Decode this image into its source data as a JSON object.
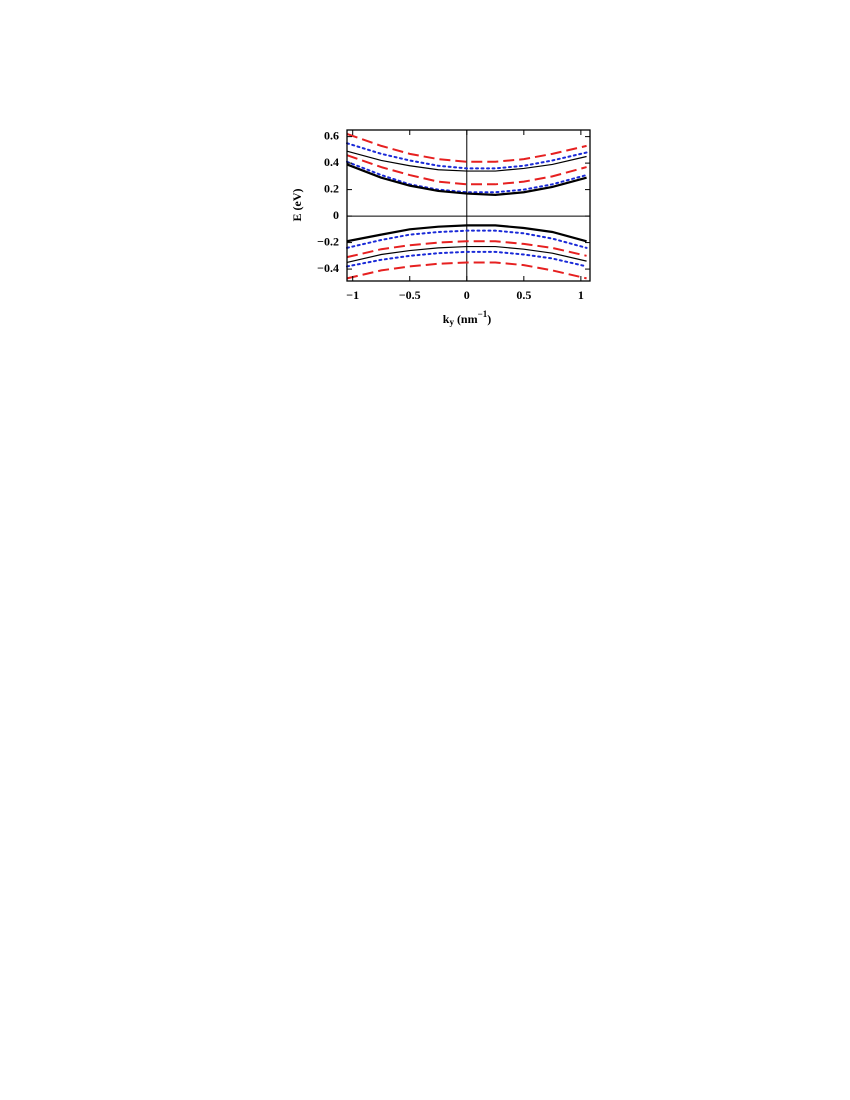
{
  "chart_data": {
    "type": "line",
    "ylabel": "E (eV)",
    "xlabel": [
      "k",
      "y",
      " (nm",
      "−1",
      ")"
    ],
    "x": [
      -1.05,
      -0.75,
      -0.5,
      -0.25,
      0,
      0.25,
      0.5,
      0.75,
      1.05
    ],
    "xlim": [
      -1.05,
      1.08
    ],
    "ylim": [
      -0.49,
      0.65
    ],
    "xticks": [
      {
        "value": -1,
        "label": "−1"
      },
      {
        "value": -0.5,
        "label": "−0.5"
      },
      0,
      0.5,
      1
    ],
    "yticks": [
      {
        "value": -0.4,
        "label": "−0.4"
      },
      {
        "value": -0.2,
        "label": "−0.2"
      },
      0,
      0.2,
      0.4,
      0.6
    ],
    "hline": 0,
    "vline": 0,
    "series": [
      {
        "color": "#e62020",
        "dash": "dashed",
        "width": 2,
        "values": [
          0.62,
          0.53,
          0.47,
          0.43,
          0.41,
          0.41,
          0.43,
          0.47,
          0.53
        ]
      },
      {
        "color": "#000000",
        "dash": "solid",
        "width": 1.2,
        "values": [
          0.49,
          0.42,
          0.38,
          0.35,
          0.34,
          0.34,
          0.36,
          0.39,
          0.45
        ]
      },
      {
        "color": "#1a2ad8",
        "dash": "dotted",
        "width": 2,
        "values": [
          0.55,
          0.47,
          0.42,
          0.38,
          0.36,
          0.36,
          0.38,
          0.42,
          0.48
        ]
      },
      {
        "color": "#e62020",
        "dash": "dashed",
        "width": 2,
        "values": [
          0.46,
          0.37,
          0.31,
          0.26,
          0.24,
          0.24,
          0.26,
          0.3,
          0.37
        ]
      },
      {
        "color": "#1a2ad8",
        "dash": "dotted",
        "width": 2,
        "values": [
          0.41,
          0.31,
          0.24,
          0.2,
          0.18,
          0.18,
          0.2,
          0.24,
          0.31
        ]
      },
      {
        "color": "#000000",
        "dash": "solid",
        "width": 2.2,
        "values": [
          0.39,
          0.29,
          0.23,
          0.19,
          0.17,
          0.16,
          0.18,
          0.22,
          0.29
        ]
      },
      {
        "color": "#000000",
        "dash": "solid",
        "width": 2.2,
        "values": [
          -0.19,
          -0.14,
          -0.1,
          -0.08,
          -0.07,
          -0.07,
          -0.09,
          -0.12,
          -0.19
        ]
      },
      {
        "color": "#1a2ad8",
        "dash": "dotted",
        "width": 2,
        "values": [
          -0.24,
          -0.18,
          -0.14,
          -0.12,
          -0.11,
          -0.11,
          -0.13,
          -0.17,
          -0.24
        ]
      },
      {
        "color": "#e62020",
        "dash": "dashed",
        "width": 2,
        "values": [
          -0.31,
          -0.25,
          -0.22,
          -0.2,
          -0.19,
          -0.19,
          -0.21,
          -0.24,
          -0.3
        ]
      },
      {
        "color": "#000000",
        "dash": "solid",
        "width": 1.2,
        "values": [
          -0.35,
          -0.29,
          -0.26,
          -0.24,
          -0.23,
          -0.23,
          -0.25,
          -0.28,
          -0.34
        ]
      },
      {
        "color": "#1a2ad8",
        "dash": "dotted",
        "width": 2,
        "values": [
          -0.38,
          -0.33,
          -0.3,
          -0.28,
          -0.27,
          -0.27,
          -0.29,
          -0.32,
          -0.38
        ]
      },
      {
        "color": "#e62020",
        "dash": "dashed",
        "width": 2,
        "values": [
          -0.47,
          -0.41,
          -0.38,
          -0.36,
          -0.35,
          -0.35,
          -0.37,
          -0.41,
          -0.47
        ]
      }
    ]
  }
}
